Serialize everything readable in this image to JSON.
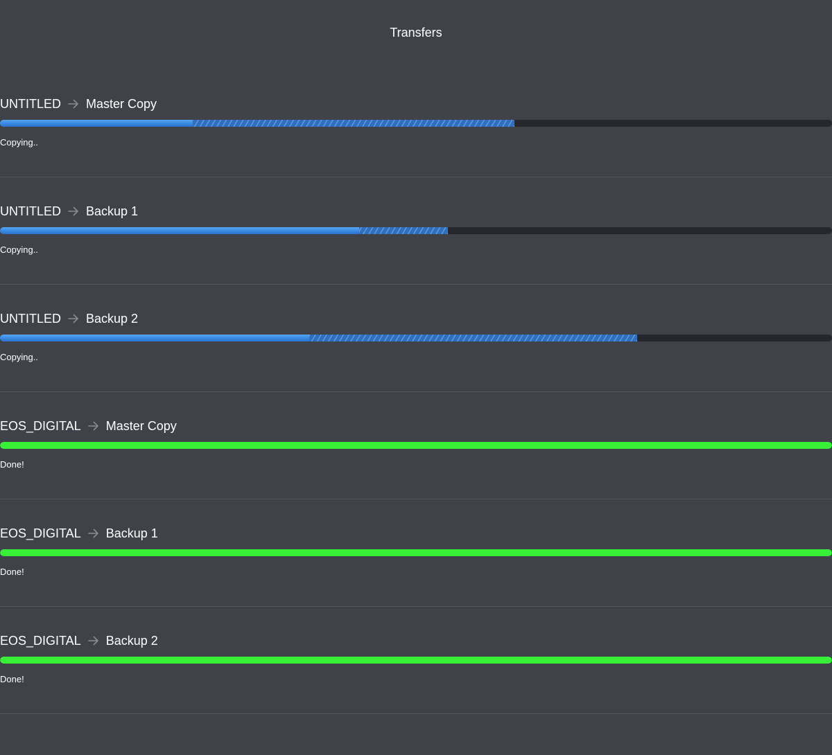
{
  "window": {
    "title": "Transfers"
  },
  "colors": {
    "background": "#40424a",
    "track": "#26272c",
    "progress_blue": "#3c8ee6",
    "done_green": "#39f039",
    "arrow": "#8a8c93"
  },
  "transfers": [
    {
      "source": "UNTITLED",
      "destination": "Master Copy",
      "status": "Copying..",
      "state": "copying",
      "progress": 0.232,
      "buffered": 0.618
    },
    {
      "source": "UNTITLED",
      "destination": "Backup 1",
      "status": "Copying..",
      "state": "copying",
      "progress": 0.432,
      "buffered": 0.538
    },
    {
      "source": "UNTITLED",
      "destination": "Backup 2",
      "status": "Copying..",
      "state": "copying",
      "progress": 0.372,
      "buffered": 0.766
    },
    {
      "source": "EOS_DIGITAL",
      "destination": "Master Copy",
      "status": "Done!",
      "state": "done",
      "progress": 1.0,
      "buffered": 1.0
    },
    {
      "source": "EOS_DIGITAL",
      "destination": "Backup 1",
      "status": "Done!",
      "state": "done",
      "progress": 1.0,
      "buffered": 1.0
    },
    {
      "source": "EOS_DIGITAL",
      "destination": "Backup 2",
      "status": "Done!",
      "state": "done",
      "progress": 1.0,
      "buffered": 1.0
    }
  ]
}
